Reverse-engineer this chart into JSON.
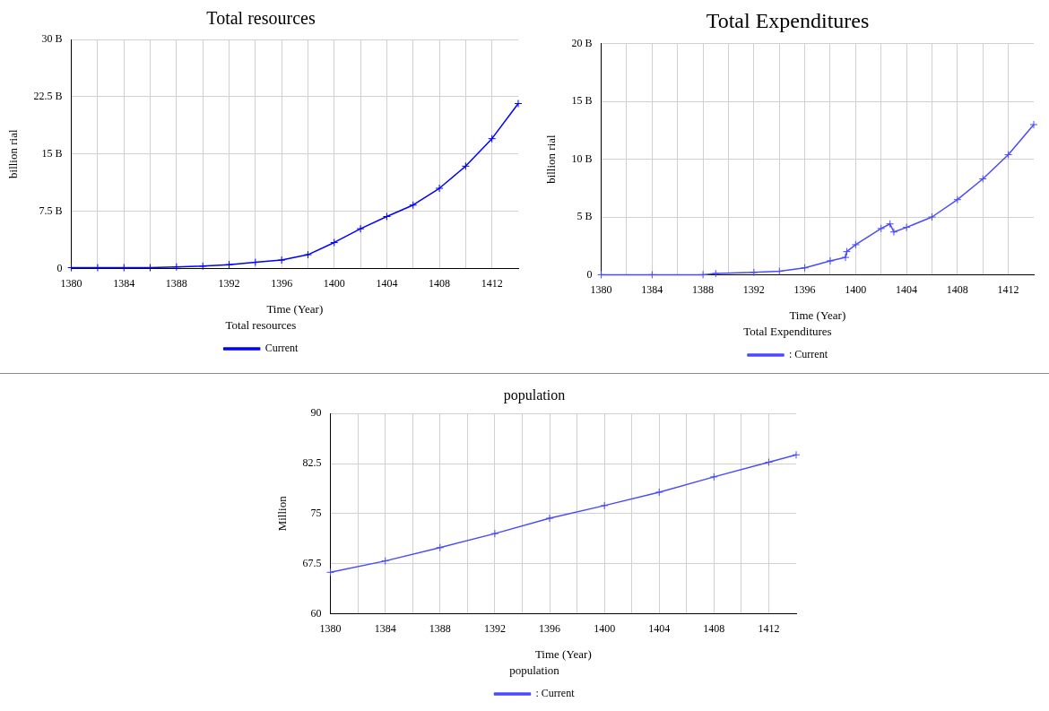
{
  "chart_data": [
    {
      "type": "line",
      "title": "Total resources",
      "xlabel": "Time (Year)",
      "ylabel": "billion rial",
      "legend_title": "Total resources",
      "legend": "bottom",
      "grid": true,
      "marker": "cross",
      "line_style": "solid",
      "x": [
        1380,
        1382,
        1384,
        1386,
        1388,
        1390,
        1392,
        1394,
        1396,
        1398,
        1400,
        1402,
        1404,
        1406,
        1408,
        1410,
        1412,
        1414
      ],
      "series": [
        {
          "name": "Current",
          "color": "#0000ff",
          "values": [
            0.1,
            0.1,
            0.1,
            0.1,
            0.2,
            0.3,
            0.5,
            0.8,
            1.1,
            1.8,
            3.4,
            5.2,
            6.8,
            8.3,
            10.5,
            13.4,
            17.0,
            21.6
          ]
        }
      ],
      "xlim": [
        1380,
        1414
      ],
      "xticks": [
        1380,
        {
          "value": 1382,
          "label": null
        },
        1384,
        {
          "value": 1386,
          "label": null
        },
        1388,
        {
          "value": 1390,
          "label": null
        },
        1392,
        {
          "value": 1394,
          "label": null
        },
        1396,
        {
          "value": 1398,
          "label": null
        },
        1400,
        {
          "value": 1402,
          "label": null
        },
        1404,
        {
          "value": 1406,
          "label": null
        },
        1408,
        {
          "value": 1410,
          "label": null
        },
        1412
      ],
      "ylim": [
        0,
        30
      ],
      "yticks": [
        0,
        {
          "value": 7.5,
          "label": "7.5 B"
        },
        {
          "value": 15,
          "label": "15 B"
        },
        {
          "value": 22.5,
          "label": "22.5 B"
        },
        {
          "value": 30,
          "label": "30 B"
        }
      ]
    },
    {
      "type": "line",
      "title": "Total Expenditures",
      "xlabel": "Time (Year)",
      "ylabel": "billion rial",
      "legend_title": "Total Expenditures",
      "legend": "bottom",
      "grid": true,
      "marker": "cross",
      "line_style": "solid",
      "x": [
        1380,
        1384,
        1388,
        1389,
        1392,
        1394,
        1396,
        1398,
        1399.2,
        1399.3,
        1400,
        1402,
        1402.7,
        1403,
        1404,
        1406,
        1408,
        1410,
        1412,
        1414
      ],
      "series": [
        {
          "name": ": Current",
          "color": "#4a4aff",
          "values": [
            0,
            0,
            0,
            0.1,
            0.2,
            0.3,
            0.6,
            1.2,
            1.5,
            2.0,
            2.6,
            4.0,
            4.4,
            3.7,
            4.1,
            5.0,
            6.5,
            8.3,
            10.4,
            13.0
          ]
        }
      ],
      "xlim": [
        1380,
        1414
      ],
      "xticks": [
        1380,
        {
          "value": 1382,
          "label": null
        },
        1384,
        {
          "value": 1386,
          "label": null
        },
        1388,
        {
          "value": 1390,
          "label": null
        },
        1392,
        {
          "value": 1394,
          "label": null
        },
        1396,
        {
          "value": 1398,
          "label": null
        },
        1400,
        {
          "value": 1402,
          "label": null
        },
        1404,
        {
          "value": 1406,
          "label": null
        },
        1408,
        {
          "value": 1410,
          "label": null
        },
        1412
      ],
      "ylim": [
        0,
        20
      ],
      "yticks": [
        0,
        {
          "value": 5,
          "label": "5 B"
        },
        {
          "value": 10,
          "label": "10 B"
        },
        {
          "value": 15,
          "label": "15 B"
        },
        {
          "value": 20,
          "label": "20 B"
        }
      ]
    },
    {
      "type": "line",
      "title": "population",
      "xlabel": "Time (Year)",
      "ylabel": "Million",
      "legend_title": "population",
      "legend": "bottom",
      "grid": true,
      "marker": "cross",
      "line_style": "solid",
      "x": [
        1380,
        1384,
        1388,
        1392,
        1396,
        1400,
        1404,
        1408,
        1412,
        1414
      ],
      "series": [
        {
          "name": ": Current",
          "color": "#4a4aff",
          "values": [
            66.2,
            67.9,
            69.9,
            72.0,
            74.3,
            76.2,
            78.2,
            80.5,
            82.7,
            83.8
          ]
        }
      ],
      "xlim": [
        1380,
        1414
      ],
      "xticks": [
        1380,
        {
          "value": 1382,
          "label": null
        },
        1384,
        {
          "value": 1386,
          "label": null
        },
        1388,
        {
          "value": 1390,
          "label": null
        },
        1392,
        {
          "value": 1394,
          "label": null
        },
        1396,
        {
          "value": 1398,
          "label": null
        },
        1400,
        {
          "value": 1402,
          "label": null
        },
        1404,
        {
          "value": 1406,
          "label": null
        },
        1408,
        {
          "value": 1410,
          "label": null
        },
        1412
      ],
      "ylim": [
        60,
        90
      ],
      "yticks": [
        60,
        67.5,
        75,
        82.5,
        90
      ]
    }
  ]
}
